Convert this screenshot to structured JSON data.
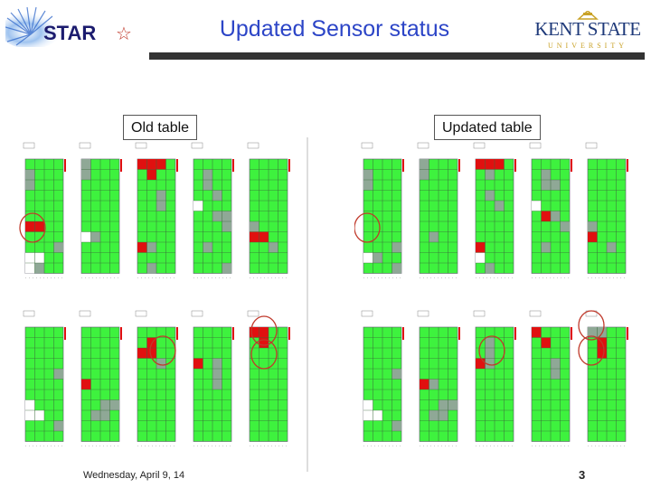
{
  "slide": {
    "title": "Updated Sensor status",
    "footer_date": "Wednesday, April 9, 14",
    "page_number": "3"
  },
  "logos": {
    "star": {
      "text": "STAR",
      "symbol": "☆"
    },
    "kent": {
      "name": "KENT STATE",
      "sub": "UNIVERSITY"
    }
  },
  "panels": {
    "old": {
      "label": "Old table"
    },
    "updated": {
      "label": "Updated table"
    }
  },
  "colors": {
    "title": "#2c45c7",
    "cell_green": "#3ef23e",
    "cell_red": "#e01010",
    "cell_gray": "#8fa896",
    "circle": "#c0392b"
  },
  "sensor_grid": {
    "columns": 4,
    "rows": 10,
    "sensors_per_panel": 10,
    "panel_layout": "2 rows x 5 sensors"
  }
}
